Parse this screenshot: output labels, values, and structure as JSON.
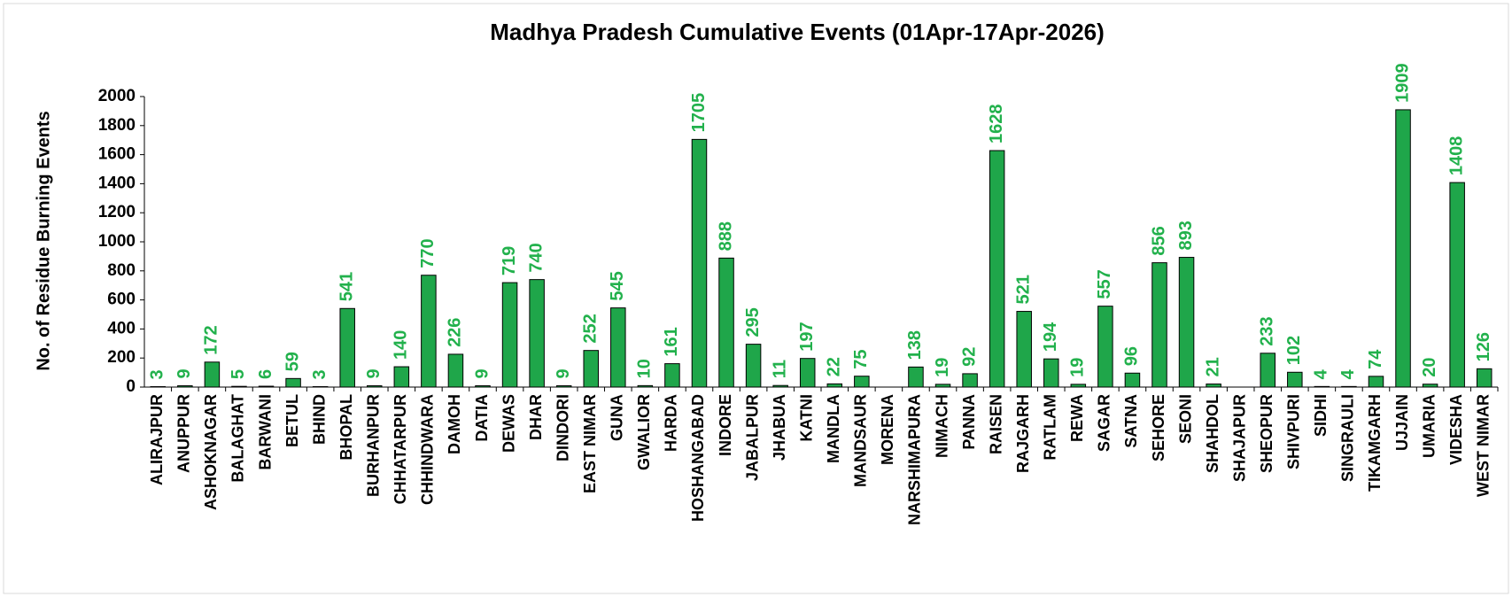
{
  "chart_data": {
    "type": "bar",
    "title": "Madhya Pradesh Cumulative Events (01Apr-17Apr-2026)",
    "y_label": "No. of Residue Burning Events",
    "categories": [
      "ALIRAJPUR",
      "ANUPPUR",
      "ASHOKNAGAR",
      "BALAGHAT",
      "BARWANI",
      "BETUL",
      "BHIND",
      "BHOPAL",
      "BURHANPUR",
      "CHHATARPUR",
      "CHHINDWARA",
      "DAMOH",
      "DATIA",
      "DEWAS",
      "DHAR",
      "DINDORI",
      "EAST NIMAR",
      "GUNA",
      "GWALIOR",
      "HARDA",
      "HOSHANGABAD",
      "INDORE",
      "JABALPUR",
      "JHABUA",
      "KATNI",
      "MANDLA",
      "MANDSAUR",
      "MORENA",
      "NARSHIMAPURA",
      "NIMACH",
      "PANNA",
      "RAISEN",
      "RAJGARH",
      "RATLAM",
      "REWA",
      "SAGAR",
      "SATNA",
      "SEHORE",
      "SEONI",
      "SHAHDOL",
      "SHAJAPUR",
      "SHEOPUR",
      "SHIVPURI",
      "SIDHI",
      "SINGRAULI",
      "TIKAMGARH",
      "UJJAIN",
      "UMARIA",
      "VIDESHA",
      "WEST NIMAR"
    ],
    "values": [
      3,
      9,
      172,
      5,
      6,
      59,
      3,
      541,
      9,
      140,
      770,
      226,
      9,
      719,
      740,
      9,
      252,
      545,
      10,
      161,
      1705,
      888,
      295,
      11,
      197,
      22,
      75,
      null,
      138,
      19,
      92,
      1628,
      521,
      194,
      19,
      557,
      96,
      856,
      893,
      21,
      null,
      233,
      102,
      4,
      4,
      74,
      1909,
      20,
      1408,
      126
    ],
    "color": "#1fa64a",
    "label_color": "#22b14c",
    "ylim": [
      0,
      2000
    ],
    "yticks": [
      0,
      200,
      400,
      600,
      800,
      1000,
      1200,
      1400,
      1600,
      1800,
      2000
    ]
  }
}
